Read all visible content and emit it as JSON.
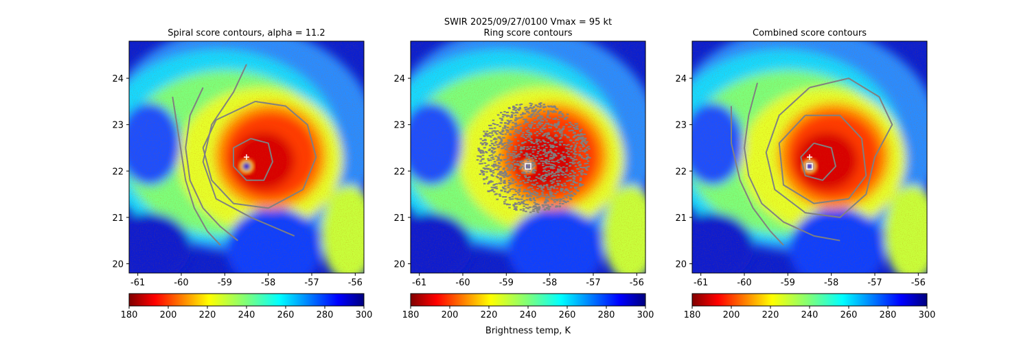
{
  "figure": {
    "suptitle_line1": "SWIR  2025/09/27/0100    Vmax = 95 kt",
    "colorbar_label": "Brightness temp, K"
  },
  "chart_data": [
    {
      "type": "heatmap",
      "title": "Spiral score contours, alpha = 11.2",
      "xlim": [
        -61.2,
        -55.8
      ],
      "ylim": [
        19.8,
        24.8
      ],
      "xticks": [
        "-61",
        "-60",
        "-59",
        "-58",
        "-57",
        "-56"
      ],
      "yticks": [
        "20",
        "21",
        "22",
        "23",
        "24"
      ],
      "storm_center": {
        "lon": -58.5,
        "lat": 22.1
      },
      "marker_plus": {
        "lon": -58.5,
        "lat": 22.3
      },
      "marker_square": null,
      "contours": [
        [
          [
            -60.2,
            23.6
          ],
          [
            -60.1,
            23.0
          ],
          [
            -60.0,
            22.4
          ],
          [
            -59.9,
            21.8
          ],
          [
            -59.7,
            21.2
          ],
          [
            -59.4,
            20.7
          ],
          [
            -59.1,
            20.4
          ]
        ],
        [
          [
            -59.5,
            23.8
          ],
          [
            -59.8,
            23.2
          ],
          [
            -59.9,
            22.5
          ],
          [
            -59.8,
            21.8
          ],
          [
            -59.5,
            21.2
          ],
          [
            -59.1,
            20.8
          ],
          [
            -58.7,
            20.5
          ]
        ],
        [
          [
            -58.5,
            24.3
          ],
          [
            -58.8,
            23.7
          ],
          [
            -59.3,
            23.0
          ],
          [
            -59.5,
            22.2
          ],
          [
            -59.2,
            21.4
          ],
          [
            -58.4,
            21.0
          ],
          [
            -57.4,
            20.6
          ]
        ],
        [
          [
            -58.3,
            23.5
          ],
          [
            -57.6,
            23.4
          ],
          [
            -57.1,
            23.0
          ],
          [
            -56.9,
            22.3
          ],
          [
            -57.2,
            21.6
          ],
          [
            -58.0,
            21.2
          ],
          [
            -58.8,
            21.3
          ],
          [
            -59.3,
            21.8
          ],
          [
            -59.5,
            22.5
          ],
          [
            -59.2,
            23.1
          ],
          [
            -58.3,
            23.5
          ]
        ],
        [
          [
            -58.4,
            22.7
          ],
          [
            -58.0,
            22.6
          ],
          [
            -57.9,
            22.2
          ],
          [
            -58.1,
            21.8
          ],
          [
            -58.5,
            21.8
          ],
          [
            -58.8,
            22.1
          ],
          [
            -58.8,
            22.5
          ],
          [
            -58.4,
            22.7
          ]
        ]
      ]
    },
    {
      "type": "heatmap",
      "title": "Ring score contours",
      "xlim": [
        -61.2,
        -55.8
      ],
      "ylim": [
        19.8,
        24.8
      ],
      "xticks": [
        "-61",
        "-60",
        "-59",
        "-58",
        "-57",
        "-56"
      ],
      "yticks": [
        "20",
        "21",
        "22",
        "23",
        "24"
      ],
      "storm_center": {
        "lon": -58.5,
        "lat": 22.1
      },
      "marker_plus": null,
      "marker_square": {
        "lon": -58.5,
        "lat": 22.1
      },
      "ring_region": {
        "lon": -58.4,
        "lat": 22.3,
        "r_lon": 1.3,
        "r_lat": 1.2
      },
      "contours": []
    },
    {
      "type": "heatmap",
      "title": "Combined score contours",
      "xlim": [
        -61.2,
        -55.8
      ],
      "ylim": [
        19.8,
        24.8
      ],
      "xticks": [
        "-61",
        "-60",
        "-59",
        "-58",
        "-57",
        "-56"
      ],
      "yticks": [
        "20",
        "21",
        "22",
        "23",
        "24"
      ],
      "storm_center": {
        "lon": -58.5,
        "lat": 22.1
      },
      "marker_plus": {
        "lon": -58.5,
        "lat": 22.3
      },
      "marker_square": {
        "lon": -58.5,
        "lat": 22.1
      },
      "contours": [
        [
          [
            -60.3,
            23.4
          ],
          [
            -60.3,
            22.6
          ],
          [
            -60.1,
            21.8
          ],
          [
            -59.8,
            21.2
          ],
          [
            -59.4,
            20.7
          ],
          [
            -59.1,
            20.4
          ]
        ],
        [
          [
            -59.7,
            23.9
          ],
          [
            -59.9,
            23.2
          ],
          [
            -60.0,
            22.5
          ],
          [
            -59.9,
            21.9
          ],
          [
            -59.6,
            21.3
          ],
          [
            -59.1,
            20.9
          ],
          [
            -58.4,
            20.6
          ],
          [
            -57.8,
            20.5
          ]
        ],
        [
          [
            -58.5,
            23.8
          ],
          [
            -57.6,
            24.0
          ],
          [
            -56.9,
            23.6
          ],
          [
            -56.6,
            23.0
          ],
          [
            -57.0,
            22.3
          ],
          [
            -57.2,
            21.5
          ],
          [
            -57.8,
            21.0
          ],
          [
            -58.6,
            21.1
          ],
          [
            -59.3,
            21.6
          ],
          [
            -59.5,
            22.4
          ],
          [
            -59.2,
            23.2
          ],
          [
            -58.5,
            23.8
          ]
        ],
        [
          [
            -58.6,
            23.2
          ],
          [
            -57.8,
            23.2
          ],
          [
            -57.3,
            22.7
          ],
          [
            -57.2,
            21.9
          ],
          [
            -57.6,
            21.4
          ],
          [
            -58.4,
            21.3
          ],
          [
            -59.1,
            21.7
          ],
          [
            -59.2,
            22.6
          ],
          [
            -58.6,
            23.2
          ]
        ],
        [
          [
            -58.4,
            22.6
          ],
          [
            -58.0,
            22.5
          ],
          [
            -57.9,
            22.1
          ],
          [
            -58.2,
            21.8
          ],
          [
            -58.6,
            21.9
          ],
          [
            -58.7,
            22.3
          ],
          [
            -58.4,
            22.6
          ]
        ]
      ]
    }
  ],
  "colorbars": [
    {
      "cmap": "jet_r",
      "range": [
        180,
        300
      ],
      "ticks": [
        "180",
        "200",
        "220",
        "240",
        "260",
        "280",
        "300"
      ]
    },
    {
      "cmap": "jet_r",
      "range": [
        180,
        300
      ],
      "ticks": [
        "180",
        "200",
        "220",
        "240",
        "260",
        "280",
        "300"
      ]
    },
    {
      "cmap": "jet_r",
      "range": [
        180,
        300
      ],
      "ticks": [
        "180",
        "200",
        "220",
        "240",
        "260",
        "280",
        "300"
      ]
    }
  ],
  "colors": {
    "contour": "#808080",
    "ring_dots": "#808080",
    "marker": "#ffffff",
    "eye": "#0000c8"
  }
}
